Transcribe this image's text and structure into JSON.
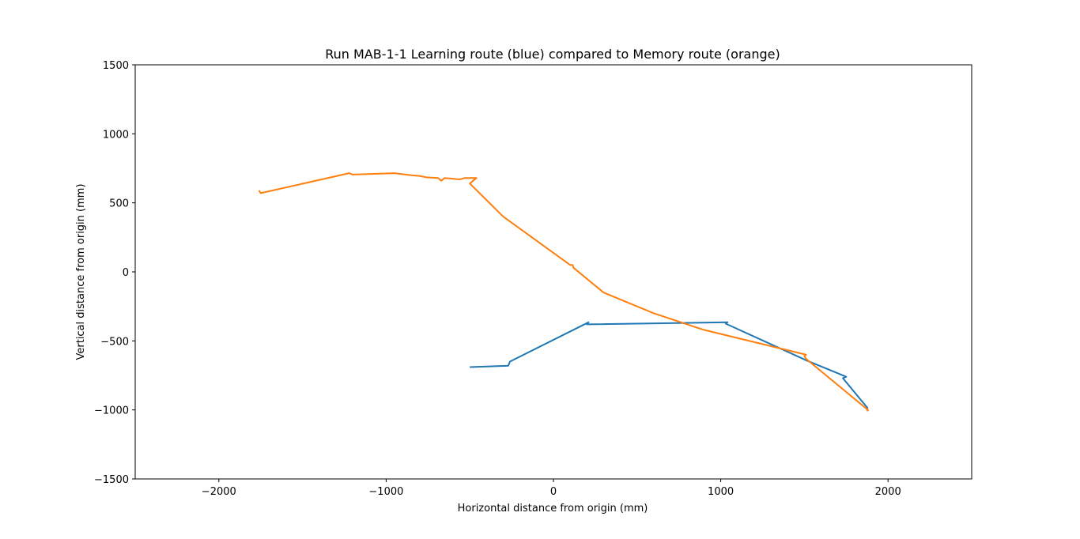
{
  "chart_data": {
    "type": "line",
    "title": "Run MAB-1-1 Learning route (blue) compared to Memory route (orange)",
    "xlabel": "Horizontal distance from origin (mm)",
    "ylabel": "Vertical distance from origin (mm)",
    "xlim": [
      -2500,
      2500
    ],
    "ylim": [
      -1500,
      1500
    ],
    "xticks": [
      -2000,
      -1000,
      0,
      1000,
      2000
    ],
    "yticks": [
      -1500,
      -1000,
      -500,
      0,
      500,
      1000,
      1500
    ],
    "xtick_labels": [
      "−2000",
      "−1000",
      "0",
      "1000",
      "2000"
    ],
    "ytick_labels": [
      "−1500",
      "−1000",
      "−500",
      "0",
      "500",
      "1000",
      "1500"
    ],
    "grid": false,
    "series": [
      {
        "color": "#1f77b4",
        "x": [
          -500,
          -270,
          -260,
          210,
          200,
          1040,
          1030,
          1510,
          1750,
          1730,
          1880
        ],
        "y": [
          -690,
          -680,
          -650,
          -365,
          -380,
          -365,
          -375,
          -640,
          -760,
          -770,
          -990
        ]
      },
      {
        "color": "#ff7f0e",
        "x": [
          1880,
          1870,
          1880,
          1510,
          1500,
          1510,
          900,
          600,
          300,
          120,
          115,
          100,
          -300,
          -500,
          -460,
          -530,
          -560,
          -650,
          -670,
          -690,
          -760,
          -800,
          -850,
          -950,
          -1200,
          -1220,
          -1750,
          -1760
        ],
        "y": [
          -1010,
          -990,
          -1000,
          -630,
          -610,
          -600,
          -420,
          -300,
          -150,
          30,
          50,
          50,
          400,
          640,
          680,
          680,
          670,
          680,
          660,
          680,
          685,
          695,
          700,
          715,
          705,
          715,
          570,
          590
        ]
      }
    ]
  }
}
